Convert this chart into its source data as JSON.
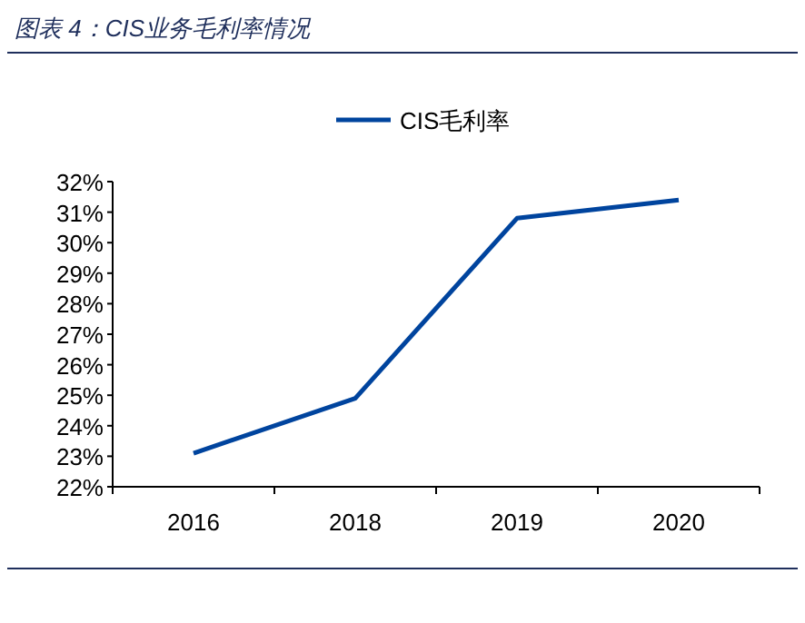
{
  "chart_data": {
    "type": "line",
    "title": "图表 4：CIS业务毛利率情况",
    "categories": [
      "2016",
      "2018",
      "2019",
      "2020"
    ],
    "series": [
      {
        "name": "CIS毛利率",
        "color": "#00449e",
        "values": [
          23.1,
          24.9,
          30.8,
          31.4
        ]
      }
    ],
    "ylim": [
      22,
      32
    ],
    "yticks": [
      {
        "value": 22,
        "label": "22%"
      },
      {
        "value": 23,
        "label": "23%"
      },
      {
        "value": 24,
        "label": "24%"
      },
      {
        "value": 25,
        "label": "25%"
      },
      {
        "value": 26,
        "label": "26%"
      },
      {
        "value": 27,
        "label": "27%"
      },
      {
        "value": 28,
        "label": "28%"
      },
      {
        "value": 29,
        "label": "29%"
      },
      {
        "value": 30,
        "label": "30%"
      },
      {
        "value": 31,
        "label": "31%"
      },
      {
        "value": 32,
        "label": "32%"
      }
    ],
    "legend": "top"
  }
}
